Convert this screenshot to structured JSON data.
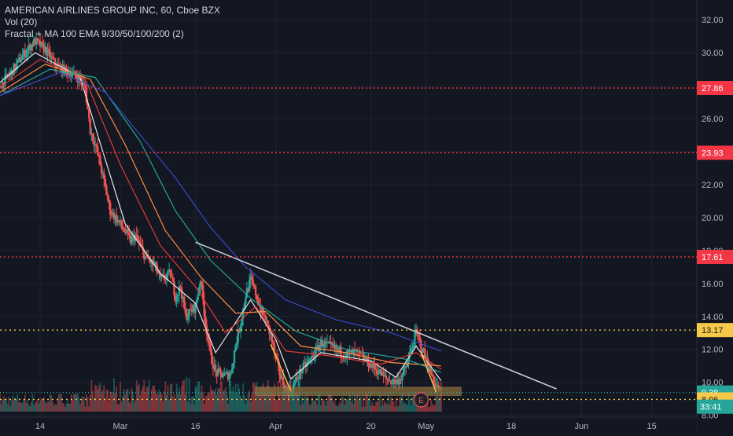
{
  "legend": {
    "title": "AMERICAN AIRLINES GROUP INC, 60, Cboe BZX",
    "vol": "Vol (20)",
    "indicator": "Fractal + MA 100 EMA 9/30/50/100/200 (2)"
  },
  "colors": {
    "background": "#131722",
    "grid": "#1f2330",
    "axis_text": "#b2b5be",
    "up": "#26a69a",
    "down": "#ef5350",
    "level_red": "#f23645",
    "level_yellow": "#f7c948",
    "trendline": "#c7cbd6",
    "ema9": "#e8e8e8",
    "ema30": "#e53935",
    "ema50": "#ff8c42",
    "ema100": "#26a69a",
    "ema200": "#3848c8",
    "support_zone": "#8a6d3b"
  },
  "chart_data": {
    "type": "candlestick",
    "symbol": "AMERICAN AIRLINES GROUP INC",
    "timeframe": "60",
    "exchange": "Cboe BZX",
    "y_axis": {
      "ticks": [
        "32.00",
        "30.00",
        "28.00",
        "26.00",
        "24.00",
        "22.00",
        "20.00",
        "18.00",
        "16.00",
        "14.00",
        "12.00",
        "10.00",
        "8.00"
      ],
      "tick_values": [
        32,
        30,
        28,
        26,
        24,
        22,
        20,
        18,
        16,
        14,
        12,
        10,
        8
      ],
      "ylim": [
        7.6,
        33.2
      ]
    },
    "x_axis": {
      "ticks": [
        "14",
        "Mar",
        "16",
        "Apr",
        "20",
        "May",
        "18",
        "Jun",
        "15"
      ],
      "tick_dates": [
        "2020-02-14",
        "2020-03-01",
        "2020-03-16",
        "2020-04-01",
        "2020-04-20",
        "2020-05-01",
        "2020-05-18",
        "2020-06-01",
        "2020-06-15"
      ],
      "xlim": [
        "2020-02-06",
        "2020-06-24"
      ]
    },
    "close_path": [
      [
        "2020-02-06",
        28.0
      ],
      [
        "2020-02-08",
        28.7
      ],
      [
        "2020-02-10",
        29.6
      ],
      [
        "2020-02-12",
        30.4
      ],
      [
        "2020-02-13",
        30.7
      ],
      [
        "2020-02-15",
        30.2
      ],
      [
        "2020-02-17",
        29.3
      ],
      [
        "2020-02-19",
        28.9
      ],
      [
        "2020-02-21",
        28.6
      ],
      [
        "2020-02-22",
        28.4
      ],
      [
        "2020-02-23",
        27.8
      ],
      [
        "2020-02-24",
        25.3
      ],
      [
        "2020-02-25",
        24.4
      ],
      [
        "2020-02-26",
        23.2
      ],
      [
        "2020-02-27",
        21.8
      ],
      [
        "2020-02-28",
        20.4
      ],
      [
        "2020-03-01",
        19.6
      ],
      [
        "2020-03-03",
        18.6
      ],
      [
        "2020-03-04",
        18.9
      ],
      [
        "2020-03-06",
        17.6
      ],
      [
        "2020-03-08",
        17.0
      ],
      [
        "2020-03-09",
        16.2
      ],
      [
        "2020-03-11",
        16.6
      ],
      [
        "2020-03-12",
        15.2
      ],
      [
        "2020-03-13",
        15.8
      ],
      [
        "2020-03-14",
        14.0
      ],
      [
        "2020-03-16",
        14.6
      ],
      [
        "2020-03-17",
        16.3
      ],
      [
        "2020-03-18",
        13.6
      ],
      [
        "2020-03-19",
        11.6
      ],
      [
        "2020-03-20",
        10.6
      ],
      [
        "2020-03-22",
        10.4
      ],
      [
        "2020-03-23",
        10.5
      ],
      [
        "2020-03-24",
        12.3
      ],
      [
        "2020-03-25",
        13.6
      ],
      [
        "2020-03-26",
        15.3
      ],
      [
        "2020-03-27",
        16.2
      ],
      [
        "2020-03-28",
        15.4
      ],
      [
        "2020-03-29",
        14.4
      ],
      [
        "2020-03-30",
        13.8
      ],
      [
        "2020-03-31",
        12.8
      ],
      [
        "2020-04-01",
        11.4
      ],
      [
        "2020-04-02",
        10.3
      ],
      [
        "2020-04-03",
        9.6
      ],
      [
        "2020-04-04",
        9.5
      ],
      [
        "2020-04-06",
        10.7
      ],
      [
        "2020-04-08",
        11.4
      ],
      [
        "2020-04-10",
        12.4
      ],
      [
        "2020-04-13",
        12.0
      ],
      [
        "2020-04-15",
        11.7
      ],
      [
        "2020-04-17",
        11.8
      ],
      [
        "2020-04-19",
        11.3
      ],
      [
        "2020-04-21",
        10.8
      ],
      [
        "2020-04-23",
        10.2
      ],
      [
        "2020-04-25",
        10.0
      ],
      [
        "2020-04-26",
        10.3
      ],
      [
        "2020-04-27",
        10.9
      ],
      [
        "2020-04-28",
        12.0
      ],
      [
        "2020-04-29",
        13.0
      ],
      [
        "2020-04-30",
        12.2
      ],
      [
        "2020-05-01",
        11.4
      ],
      [
        "2020-05-02",
        10.5
      ],
      [
        "2020-05-03",
        9.8
      ],
      [
        "2020-05-04",
        9.4
      ]
    ],
    "ema_series": [
      {
        "id": "ema9",
        "points": [
          [
            "2020-02-06",
            28.2
          ],
          [
            "2020-02-13",
            30.0
          ],
          [
            "2020-02-22",
            28.5
          ],
          [
            "2020-02-26",
            24.5
          ],
          [
            "2020-03-02",
            19.6
          ],
          [
            "2020-03-09",
            16.6
          ],
          [
            "2020-03-16",
            14.8
          ],
          [
            "2020-03-20",
            11.8
          ],
          [
            "2020-03-27",
            15.0
          ],
          [
            "2020-04-01",
            12.6
          ],
          [
            "2020-04-04",
            10.2
          ],
          [
            "2020-04-10",
            11.8
          ],
          [
            "2020-04-20",
            11.3
          ],
          [
            "2020-04-25",
            10.3
          ],
          [
            "2020-04-29",
            12.2
          ],
          [
            "2020-05-04",
            10.1
          ]
        ]
      },
      {
        "id": "ema30",
        "points": [
          [
            "2020-02-06",
            27.9
          ],
          [
            "2020-02-14",
            29.6
          ],
          [
            "2020-02-23",
            28.4
          ],
          [
            "2020-03-01",
            23.2
          ],
          [
            "2020-03-09",
            18.3
          ],
          [
            "2020-03-16",
            15.8
          ],
          [
            "2020-03-22",
            13.0
          ],
          [
            "2020-03-28",
            14.6
          ],
          [
            "2020-04-03",
            11.9
          ],
          [
            "2020-04-12",
            11.6
          ],
          [
            "2020-04-22",
            11.1
          ],
          [
            "2020-04-29",
            11.8
          ],
          [
            "2020-05-04",
            10.8
          ]
        ]
      },
      {
        "id": "ema50",
        "points": [
          [
            "2020-02-06",
            27.6
          ],
          [
            "2020-02-15",
            29.3
          ],
          [
            "2020-02-24",
            28.4
          ],
          [
            "2020-03-02",
            24.4
          ],
          [
            "2020-03-10",
            19.2
          ],
          [
            "2020-03-17",
            16.4
          ],
          [
            "2020-03-24",
            14.2
          ],
          [
            "2020-03-30",
            14.3
          ],
          [
            "2020-04-06",
            12.2
          ],
          [
            "2020-04-15",
            11.8
          ],
          [
            "2020-04-24",
            11.2
          ],
          [
            "2020-05-04",
            11.0
          ]
        ]
      },
      {
        "id": "ema100",
        "points": [
          [
            "2020-02-06",
            27.4
          ],
          [
            "2020-02-16",
            29.0
          ],
          [
            "2020-02-25",
            28.5
          ],
          [
            "2020-03-05",
            24.6
          ],
          [
            "2020-03-12",
            20.4
          ],
          [
            "2020-03-19",
            17.4
          ],
          [
            "2020-03-27",
            15.1
          ],
          [
            "2020-04-05",
            13.1
          ],
          [
            "2020-04-15",
            12.0
          ],
          [
            "2020-04-27",
            11.4
          ],
          [
            "2020-05-04",
            10.6
          ]
        ]
      },
      {
        "id": "ema200",
        "points": [
          [
            "2020-02-06",
            27.4
          ],
          [
            "2020-02-18",
            28.8
          ],
          [
            "2020-02-27",
            27.6
          ],
          [
            "2020-03-05",
            25.0
          ],
          [
            "2020-03-12",
            22.4
          ],
          [
            "2020-03-19",
            19.4
          ],
          [
            "2020-03-26",
            17.0
          ],
          [
            "2020-04-03",
            15.0
          ],
          [
            "2020-04-13",
            13.8
          ],
          [
            "2020-04-24",
            13.0
          ],
          [
            "2020-05-04",
            11.9
          ]
        ]
      }
    ],
    "trendline": {
      "start": [
        "2020-03-16",
        18.5
      ],
      "end": [
        "2020-05-27",
        9.6
      ]
    },
    "fractal_segments": [
      [
        [
          "2020-03-31",
          12.3
        ],
        [
          "2020-04-04",
          9.5
        ]
      ],
      [
        [
          "2020-04-30",
          11.8
        ],
        [
          "2020-05-03",
          9.4
        ]
      ]
    ],
    "support_zone": {
      "from": "2020-03-28",
      "to": "2020-05-08",
      "low": 9.2,
      "high": 9.7
    },
    "levels": [
      {
        "price": 27.86,
        "label": "27.86",
        "style": "red"
      },
      {
        "price": 23.93,
        "label": "23.93",
        "style": "red"
      },
      {
        "price": 17.61,
        "label": "17.61",
        "style": "red"
      },
      {
        "price": 13.17,
        "label": "13.17",
        "style": "yellow"
      },
      {
        "price": 9.38,
        "label": "9.38",
        "style": "current"
      },
      {
        "price": 8.96,
        "label": "8.96",
        "style": "yellow"
      }
    ],
    "countdown": "33:41",
    "earnings_marker": {
      "date": "2020-04-30",
      "label": "E"
    },
    "volume": {
      "label": "Vol (20)",
      "ma": 0.35,
      "bars_per_day": 1
    }
  }
}
